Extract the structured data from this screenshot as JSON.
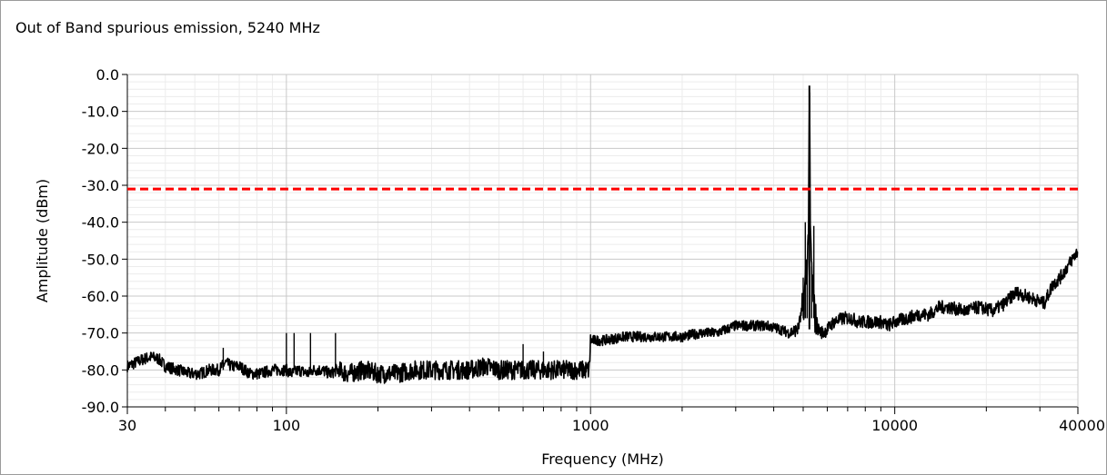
{
  "window": {
    "title": "Out of Band spurious emission, 5240 MHz"
  },
  "chart_data": {
    "type": "line",
    "title": "Out of Band spurious emission, 5240 MHz",
    "xlabel": "Frequency (MHz)",
    "ylabel": "Amplitude (dBm)",
    "xscale": "log",
    "xlim": [
      30,
      40000
    ],
    "ylim": [
      -90,
      0
    ],
    "grid": true,
    "x_ticks": [
      {
        "value": 30,
        "label": "30"
      },
      {
        "value": 100,
        "label": "100"
      },
      {
        "value": 1000,
        "label": "1000"
      },
      {
        "value": 10000,
        "label": "10000"
      },
      {
        "value": 40000,
        "label": "40000"
      }
    ],
    "y_ticks": [
      {
        "value": 0,
        "label": "0.0"
      },
      {
        "value": -10,
        "label": "-10.0"
      },
      {
        "value": -20,
        "label": "-20.0"
      },
      {
        "value": -30,
        "label": "-30.0"
      },
      {
        "value": -40,
        "label": "-40.0"
      },
      {
        "value": -50,
        "label": "-50.0"
      },
      {
        "value": -60,
        "label": "-60.0"
      },
      {
        "value": -70,
        "label": "-70.0"
      },
      {
        "value": -80,
        "label": "-80.0"
      },
      {
        "value": -90,
        "label": "-90.0"
      }
    ],
    "limit_line": {
      "value": -31,
      "color": "#ff0000",
      "style": "dashed"
    },
    "series": [
      {
        "color": "#000000",
        "x": [
          30,
          32,
          34,
          36,
          38,
          40,
          44,
          48,
          52,
          56,
          60,
          63,
          66,
          70,
          76,
          82,
          90,
          98,
          100,
          104,
          110,
          118,
          122,
          130,
          140,
          146,
          160,
          180,
          200,
          230,
          260,
          300,
          350,
          400,
          450,
          500,
          560,
          600,
          640,
          700,
          800,
          900,
          990,
          1000,
          1010,
          1100,
          1300,
          1500,
          1800,
          2000,
          2300,
          2600,
          3000,
          3400,
          3800,
          4200,
          4500,
          4800,
          5000,
          5100,
          5200,
          5240,
          5280,
          5350,
          5450,
          5600,
          5800,
          6000,
          6300,
          6800,
          7200,
          7600,
          8000,
          8500,
          9000,
          9500,
          10000,
          11000,
          12000,
          13000,
          14000,
          15000,
          17000,
          19000,
          21000,
          23000,
          25000,
          27000,
          29000,
          31000,
          33000,
          35000,
          37000,
          39000,
          40000
        ],
        "y": [
          -79,
          -78,
          -77,
          -76.5,
          -77,
          -79,
          -80,
          -81,
          -81,
          -80,
          -80,
          -78,
          -79,
          -79,
          -81,
          -81,
          -80,
          -80,
          -80,
          -81,
          -80,
          -81,
          -80,
          -80,
          -81,
          -80,
          -81,
          -80,
          -81,
          -81,
          -80,
          -80,
          -80,
          -80,
          -79,
          -80,
          -80,
          -80,
          -80,
          -80,
          -80,
          -80,
          -80,
          -72,
          -72,
          -72,
          -71,
          -71,
          -71,
          -71,
          -70,
          -70,
          -68,
          -68,
          -68,
          -69,
          -70,
          -69,
          -63,
          -55,
          -45,
          -3,
          -45,
          -55,
          -65,
          -69,
          -70,
          -69,
          -67,
          -66,
          -66,
          -67,
          -67,
          -67,
          -67,
          -68,
          -67,
          -66,
          -65,
          -65,
          -63,
          -63,
          -64,
          -63,
          -64,
          -62,
          -59,
          -60,
          -61,
          -62,
          -57,
          -55,
          -52,
          -49,
          -48
        ]
      }
    ],
    "spurs": [
      {
        "x": 62,
        "y": -74
      },
      {
        "x": 100,
        "y": -70
      },
      {
        "x": 106,
        "y": -70
      },
      {
        "x": 120,
        "y": -70
      },
      {
        "x": 145,
        "y": -70
      },
      {
        "x": 600,
        "y": -73
      },
      {
        "x": 700,
        "y": -75
      }
    ]
  }
}
